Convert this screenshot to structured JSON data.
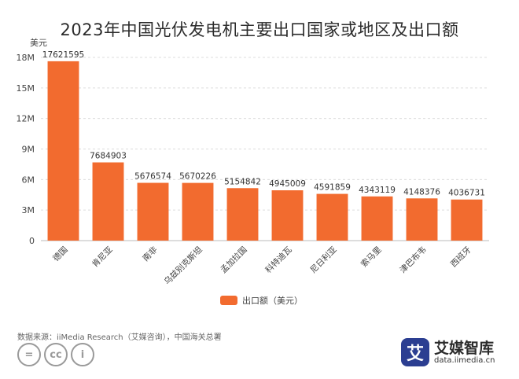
{
  "chart_data": {
    "type": "bar",
    "title": "2023年中国光伏发电机主要出口国家或地区及出口额",
    "ylabel": "美元",
    "categories": [
      "德国",
      "肯尼亚",
      "南非",
      "乌兹别克斯坦",
      "孟加拉国",
      "科特迪瓦",
      "尼日利亚",
      "索马里",
      "津巴布韦",
      "西班牙"
    ],
    "series": [
      {
        "name": "出口额（美元）",
        "values": [
          17621595,
          7684903,
          5676574,
          5670226,
          5154842,
          4945009,
          4591859,
          4343119,
          4148376,
          4036731
        ]
      }
    ],
    "data_labels": [
      "17621595",
      "7684903",
      "5676574",
      "5670226",
      "5154842",
      "4945009",
      "4591859",
      "4343119",
      "4148376",
      "4036731"
    ],
    "ylim": [
      0,
      18000000
    ],
    "yticks": [
      0,
      3000000,
      6000000,
      9000000,
      12000000,
      15000000,
      18000000
    ],
    "ytick_labels": [
      "0",
      "3M",
      "6M",
      "9M",
      "12M",
      "15M",
      "18M"
    ],
    "grid": true,
    "legend_position": "bottom",
    "bar_color": "#f26b2f"
  },
  "source": "数据来源：iiMedia Research（艾媒咨询），中国海关总署",
  "license_icons": [
    "=",
    "cc",
    "i"
  ],
  "brand": {
    "logo_char": "艾",
    "name": "艾媒智库",
    "url": "data.iimedia.cn"
  }
}
